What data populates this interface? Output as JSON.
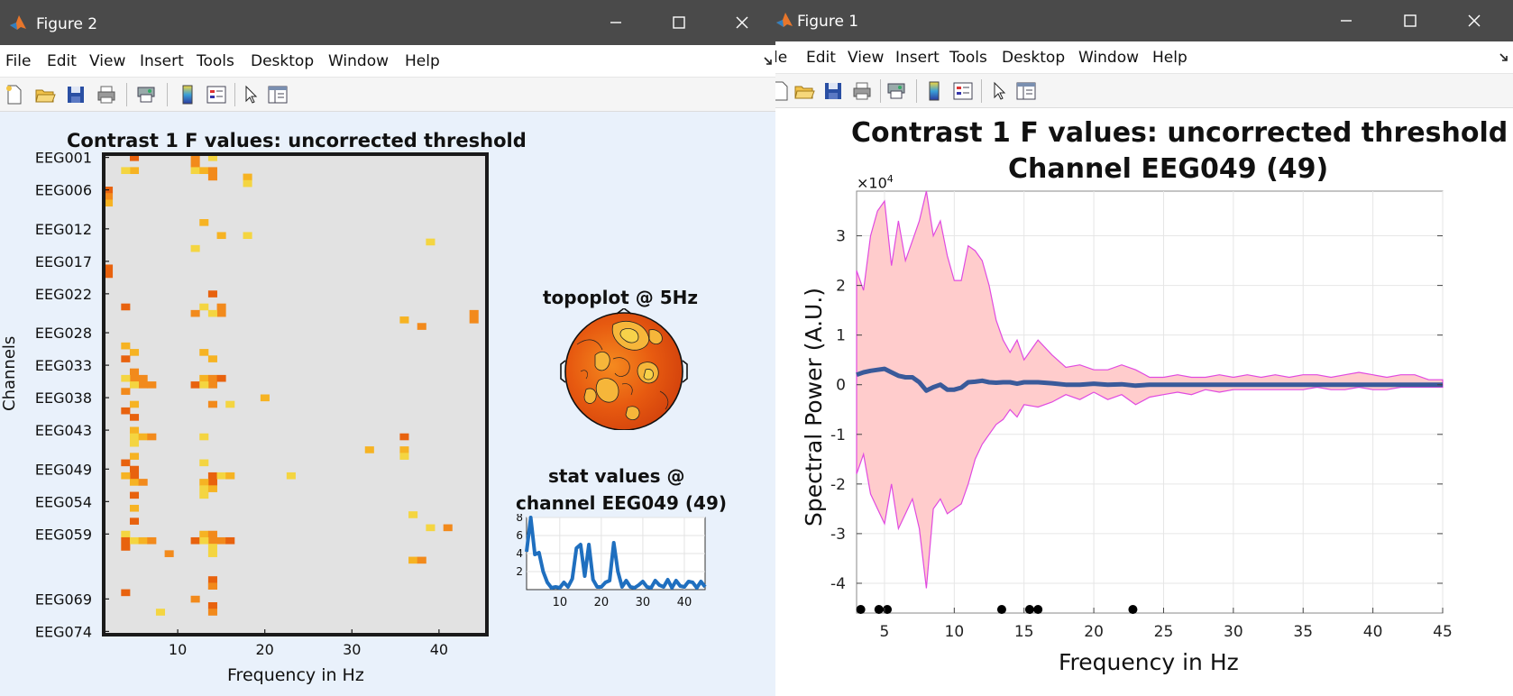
{
  "figure2": {
    "window_title": "Figure 2",
    "menu": [
      "File",
      "Edit",
      "View",
      "Insert",
      "Tools",
      "Desktop",
      "Window",
      "Help"
    ],
    "toolbar_icons": [
      "new-file-icon",
      "open-folder-icon",
      "save-icon",
      "print-icon",
      "print-preview-icon",
      "colorbar-icon",
      "legend-icon",
      "pointer-icon",
      "property-editor-icon"
    ],
    "heatmap": {
      "title": "Contrast 1 F values: uncorrected threshold",
      "ylabel": "Channels",
      "xlabel": "Frequency in Hz",
      "channel_labels": [
        "EEG001",
        "EEG006",
        "EEG012",
        "EEG017",
        "EEG022",
        "EEG028",
        "EEG033",
        "EEG038",
        "EEG043",
        "EEG049",
        "EEG054",
        "EEG059",
        "EEG069",
        "EEG074"
      ],
      "xticks": [
        "10",
        "20",
        "30",
        "40"
      ],
      "background": "#e2e2e2"
    },
    "topoplot": {
      "title": "topoplot @ 5Hz"
    },
    "stat_plot": {
      "title_line1": "stat values @",
      "title_line2": "channel EEG049 (49)",
      "yticks": [
        "8",
        "6",
        "4",
        "2"
      ],
      "xticks": [
        "10",
        "20",
        "30",
        "40"
      ],
      "line_color": "#1f6fbf"
    }
  },
  "figure1": {
    "window_title": "Figure 1",
    "menu": [
      "le",
      "Edit",
      "View",
      "Insert",
      "Tools",
      "Desktop",
      "Window",
      "Help"
    ],
    "title_line1": "Contrast 1 F values: uncorrected threshold",
    "title_line2": "Channel EEG049 (49)",
    "ylabel": "Spectral Power (A.U.)",
    "xlabel": "Frequency in Hz",
    "y_exponent": "×10",
    "y_exponent_power": "4",
    "colors": {
      "band_fill": "#ffcccc",
      "band_edge": "#e04ae0",
      "mean_line": "#3a5a9a",
      "markers": "#000000"
    }
  },
  "chart_data": [
    {
      "type": "heatmap",
      "title": "Contrast 1 F values: uncorrected threshold",
      "xlabel": "Frequency in Hz",
      "ylabel": "Channels",
      "xlim": [
        2,
        45
      ],
      "row_count": 74,
      "cells": [
        [
          5,
          1,
          1
        ],
        [
          14,
          1,
          1
        ],
        [
          12,
          1,
          2
        ],
        [
          5,
          3,
          1
        ],
        [
          12,
          3,
          1
        ],
        [
          13,
          3,
          1
        ],
        [
          14,
          3,
          2
        ],
        [
          4,
          3,
          1
        ],
        [
          18,
          4,
          1
        ],
        [
          18,
          5,
          1
        ],
        [
          2,
          6,
          1
        ],
        [
          2,
          7,
          1
        ],
        [
          2,
          8,
          1
        ],
        [
          13,
          11,
          1
        ],
        [
          15,
          13,
          1
        ],
        [
          18,
          13,
          1
        ],
        [
          39,
          14,
          1
        ],
        [
          12,
          15,
          1
        ],
        [
          2,
          18,
          2
        ],
        [
          14,
          22,
          1
        ],
        [
          4,
          24,
          1
        ],
        [
          13,
          24,
          1
        ],
        [
          15,
          24,
          2
        ],
        [
          44,
          25,
          2
        ],
        [
          12,
          25,
          1
        ],
        [
          14,
          25,
          1
        ],
        [
          36,
          26,
          1
        ],
        [
          38,
          27,
          1
        ],
        [
          4,
          30,
          1
        ],
        [
          5,
          31,
          1
        ],
        [
          13,
          31,
          1
        ],
        [
          4,
          32,
          1
        ],
        [
          14,
          32,
          1
        ],
        [
          5,
          34,
          2
        ],
        [
          4,
          35,
          1
        ],
        [
          6,
          35,
          2
        ],
        [
          13,
          35,
          1
        ],
        [
          14,
          35,
          2
        ],
        [
          15,
          35,
          1
        ],
        [
          5,
          36,
          1
        ],
        [
          7,
          36,
          1
        ],
        [
          12,
          36,
          1
        ],
        [
          13,
          36,
          1
        ],
        [
          4,
          37,
          1
        ],
        [
          20,
          38,
          1
        ],
        [
          5,
          39,
          1
        ],
        [
          14,
          39,
          1
        ],
        [
          16,
          39,
          1
        ],
        [
          4,
          40,
          1
        ],
        [
          5,
          41,
          1
        ],
        [
          5,
          43,
          1
        ],
        [
          5,
          44,
          2
        ],
        [
          6,
          44,
          1
        ],
        [
          7,
          44,
          1
        ],
        [
          13,
          44,
          1
        ],
        [
          36,
          44,
          1
        ],
        [
          32,
          46,
          1
        ],
        [
          36,
          46,
          1
        ],
        [
          5,
          47,
          1
        ],
        [
          36,
          47,
          1
        ],
        [
          4,
          48,
          1
        ],
        [
          13,
          48,
          1
        ],
        [
          5,
          49,
          2
        ],
        [
          4,
          50,
          1
        ],
        [
          14,
          50,
          2
        ],
        [
          15,
          50,
          1
        ],
        [
          16,
          50,
          1
        ],
        [
          23,
          50,
          1
        ],
        [
          5,
          51,
          1
        ],
        [
          6,
          51,
          1
        ],
        [
          13,
          51,
          1
        ],
        [
          13,
          52,
          2
        ],
        [
          14,
          52,
          1
        ],
        [
          5,
          53,
          1
        ],
        [
          5,
          55,
          1
        ],
        [
          37,
          56,
          1
        ],
        [
          5,
          57,
          1
        ],
        [
          39,
          58,
          1
        ],
        [
          41,
          58,
          1
        ],
        [
          4,
          59,
          1
        ],
        [
          13,
          59,
          1
        ],
        [
          14,
          59,
          2
        ],
        [
          4,
          60,
          2
        ],
        [
          5,
          60,
          1
        ],
        [
          6,
          60,
          1
        ],
        [
          7,
          60,
          1
        ],
        [
          12,
          60,
          1
        ],
        [
          13,
          60,
          1
        ],
        [
          15,
          60,
          1
        ],
        [
          16,
          60,
          1
        ],
        [
          14,
          61,
          2
        ],
        [
          9,
          62,
          1
        ],
        [
          37,
          63,
          1
        ],
        [
          38,
          63,
          1
        ],
        [
          14,
          66,
          2
        ],
        [
          14,
          67,
          1
        ],
        [
          4,
          68,
          1
        ],
        [
          12,
          69,
          1
        ],
        [
          14,
          70,
          1
        ],
        [
          8,
          71,
          1
        ],
        [
          14,
          71,
          1
        ]
      ]
    },
    {
      "type": "line",
      "title": "stat values @ channel EEG049 (49)",
      "ylim": [
        0,
        8
      ],
      "x": [
        2,
        3,
        4,
        5,
        6,
        7,
        8,
        9,
        10,
        11,
        12,
        13,
        14,
        15,
        16,
        17,
        18,
        19,
        20,
        21,
        22,
        23,
        24,
        25,
        26,
        27,
        28,
        29,
        30,
        31,
        32,
        33,
        34,
        35,
        36,
        37,
        38,
        39,
        40,
        41,
        42,
        43,
        44,
        45
      ],
      "values": [
        4.2,
        8.0,
        3.9,
        4.1,
        2.0,
        0.8,
        0.2,
        0.3,
        0.2,
        0.8,
        0.3,
        1.2,
        4.6,
        5.0,
        1.5,
        5.0,
        1.1,
        0.3,
        0.3,
        0.8,
        1.0,
        5.2,
        2.0,
        0.3,
        1.0,
        0.3,
        0.2,
        0.5,
        0.9,
        0.3,
        0.2,
        1.0,
        0.5,
        0.3,
        1.1,
        0.2,
        1.0,
        0.4,
        0.3,
        0.9,
        0.8,
        0.2,
        0.9,
        0.3
      ]
    },
    {
      "type": "area",
      "title": "Contrast 1 F values: uncorrected threshold — Channel EEG049 (49)",
      "xlabel": "Frequency in Hz",
      "ylabel": "Spectral Power (A.U.)",
      "y_multiplier": 10000,
      "xlim": [
        3,
        45
      ],
      "ylim": [
        -4.6,
        3.9
      ],
      "xticks": [
        5,
        10,
        15,
        20,
        25,
        30,
        35,
        40,
        45
      ],
      "yticks": [
        -4,
        -3,
        -2,
        -1,
        0,
        1,
        2,
        3
      ],
      "x": [
        3,
        3.5,
        4,
        4.5,
        5,
        5.5,
        6,
        6.5,
        7,
        7.5,
        8,
        8.5,
        9,
        9.5,
        10,
        10.5,
        11,
        11.5,
        12,
        12.5,
        13,
        13.5,
        14,
        14.5,
        15,
        16,
        17,
        18,
        19,
        20,
        21,
        22,
        23,
        24,
        25,
        26,
        27,
        28,
        29,
        30,
        31,
        32,
        33,
        34,
        35,
        36,
        37,
        38,
        39,
        40,
        41,
        42,
        43,
        44,
        45
      ],
      "series": [
        {
          "name": "upper",
          "values": [
            2.3,
            1.9,
            3.0,
            3.5,
            3.7,
            2.4,
            3.3,
            2.5,
            2.9,
            3.3,
            3.9,
            3.0,
            3.3,
            2.6,
            2.1,
            2.1,
            2.8,
            2.7,
            2.5,
            2.0,
            1.3,
            0.9,
            0.65,
            0.9,
            0.5,
            0.9,
            0.6,
            0.35,
            0.4,
            0.3,
            0.3,
            0.4,
            0.3,
            0.15,
            0.15,
            0.2,
            0.15,
            0.15,
            0.2,
            0.15,
            0.2,
            0.15,
            0.2,
            0.15,
            0.2,
            0.2,
            0.15,
            0.2,
            0.25,
            0.2,
            0.15,
            0.2,
            0.2,
            0.1,
            0.1
          ]
        },
        {
          "name": "mean",
          "values": [
            0.2,
            0.25,
            0.28,
            0.3,
            0.32,
            0.25,
            0.18,
            0.15,
            0.15,
            0.05,
            -0.12,
            -0.05,
            0.0,
            -0.1,
            -0.1,
            -0.06,
            0.05,
            0.06,
            0.08,
            0.05,
            0.04,
            0.05,
            0.05,
            0.02,
            0.05,
            0.05,
            0.03,
            0.0,
            0.0,
            0.02,
            0.0,
            0.01,
            -0.02,
            0.0,
            0.0,
            0.0,
            0.0,
            0.0,
            0.0,
            0.0,
            0.0,
            0.0,
            0.0,
            0.0,
            0.0,
            0.0,
            0.0,
            0.0,
            0.0,
            0.0,
            0.0,
            0.0,
            0.0,
            0.0,
            0.0
          ]
        },
        {
          "name": "lower",
          "values": [
            -1.8,
            -1.4,
            -2.2,
            -2.5,
            -2.8,
            -2.0,
            -2.9,
            -2.6,
            -2.3,
            -2.9,
            -4.1,
            -2.5,
            -2.3,
            -2.6,
            -2.5,
            -2.4,
            -2.0,
            -1.5,
            -1.2,
            -1.0,
            -0.8,
            -0.7,
            -0.5,
            -0.65,
            -0.4,
            -0.45,
            -0.35,
            -0.2,
            -0.3,
            -0.15,
            -0.3,
            -0.2,
            -0.4,
            -0.25,
            -0.2,
            -0.15,
            -0.2,
            -0.1,
            -0.15,
            -0.1,
            -0.1,
            -0.1,
            -0.1,
            -0.1,
            -0.1,
            -0.05,
            -0.1,
            -0.1,
            -0.05,
            -0.1,
            -0.1,
            -0.05,
            -0.05,
            -0.05,
            -0.05
          ]
        }
      ],
      "significant_x": [
        3.3,
        4.6,
        5.2,
        13.4,
        15.4,
        16.0,
        22.8
      ]
    }
  ]
}
